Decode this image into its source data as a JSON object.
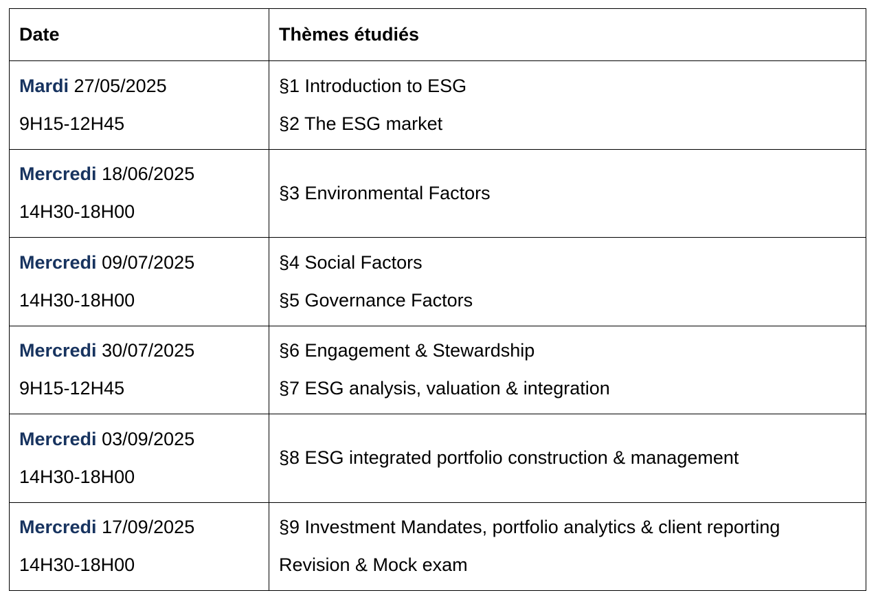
{
  "table": {
    "headers": {
      "date": "Date",
      "topics": "Thèmes étudiés"
    },
    "rows": [
      {
        "day": "Mardi",
        "date": "27/05/2025",
        "time": "9H15-12H45",
        "topics": [
          "§1 Introduction to ESG",
          "§2 The ESG market"
        ]
      },
      {
        "day": "Mercredi",
        "date": "18/06/2025",
        "time": "14H30-18H00",
        "topics": [
          "§3 Environmental Factors"
        ]
      },
      {
        "day": "Mercredi",
        "date": "09/07/2025",
        "time": "14H30-18H00",
        "topics": [
          "§4 Social Factors",
          "§5 Governance Factors"
        ]
      },
      {
        "day": "Mercredi",
        "date": "30/07/2025",
        "time": "9H15-12H45",
        "topics": [
          "§6 Engagement & Stewardship",
          "§7 ESG analysis, valuation & integration"
        ]
      },
      {
        "day": "Mercredi",
        "date": "03/09/2025",
        "time": "14H30-18H00",
        "topics": [
          "§8 ESG integrated portfolio construction & management"
        ]
      },
      {
        "day": "Mercredi",
        "date": "17/09/2025",
        "time": "14H30-18H00",
        "topics": [
          "§9 Investment Mandates, portfolio analytics & client reporting",
          "Revision & Mock exam"
        ]
      }
    ]
  },
  "colors": {
    "day_label": "#17335f",
    "text": "#000000",
    "border": "#000000"
  }
}
